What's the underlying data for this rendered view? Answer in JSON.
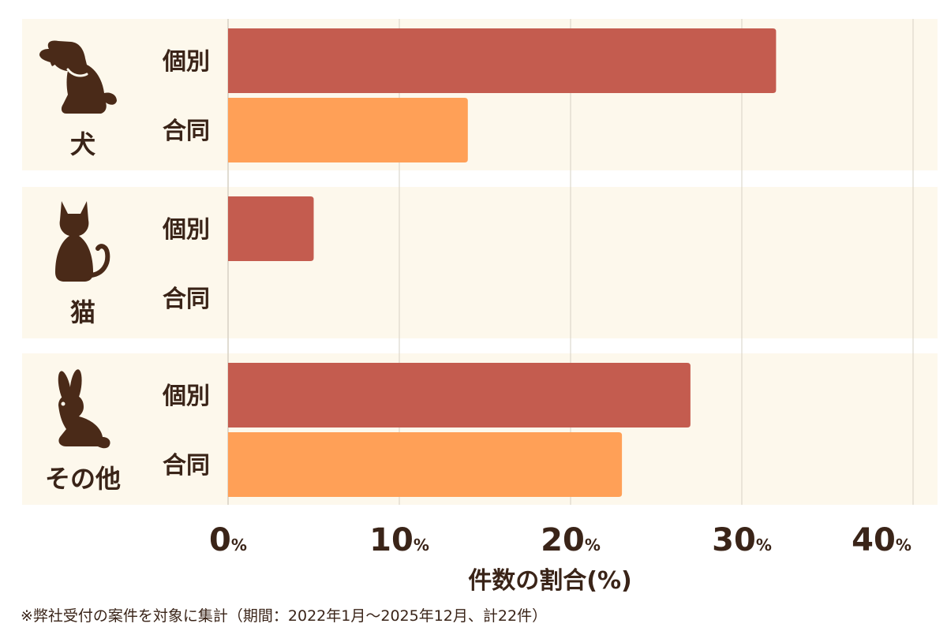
{
  "chart_data": {
    "type": "bar",
    "orientation": "horizontal",
    "xlabel": "件数の割合(%)",
    "xlim": [
      0,
      40
    ],
    "x_ticks": [
      {
        "value": 0,
        "number": "0",
        "unit": "%"
      },
      {
        "value": 10,
        "number": "10",
        "unit": "%"
      },
      {
        "value": 20,
        "number": "20",
        "unit": "%"
      },
      {
        "value": 30,
        "number": "30",
        "unit": "%"
      },
      {
        "value": 40,
        "number": "40",
        "unit": "%"
      }
    ],
    "grid": true,
    "series_labels": [
      "個別",
      "合同"
    ],
    "groups": [
      {
        "name": "犬",
        "icon": "dog-icon",
        "values": [
          32,
          14
        ]
      },
      {
        "name": "猫",
        "icon": "cat-icon",
        "values": [
          5,
          0
        ]
      },
      {
        "name": "その他",
        "icon": "rabbit-icon",
        "values": [
          27,
          23
        ]
      }
    ],
    "colors": {
      "個別": "#c45c4f",
      "合同": "#ffa057",
      "panel": "#fdf8ec",
      "grid": "#d6d0c4",
      "text": "#3a2418",
      "icon": "#4a2a18"
    }
  },
  "footnote": "※弊社受付の案件を対象に集計（期間：2022年1月〜2025年12月、計22件）"
}
